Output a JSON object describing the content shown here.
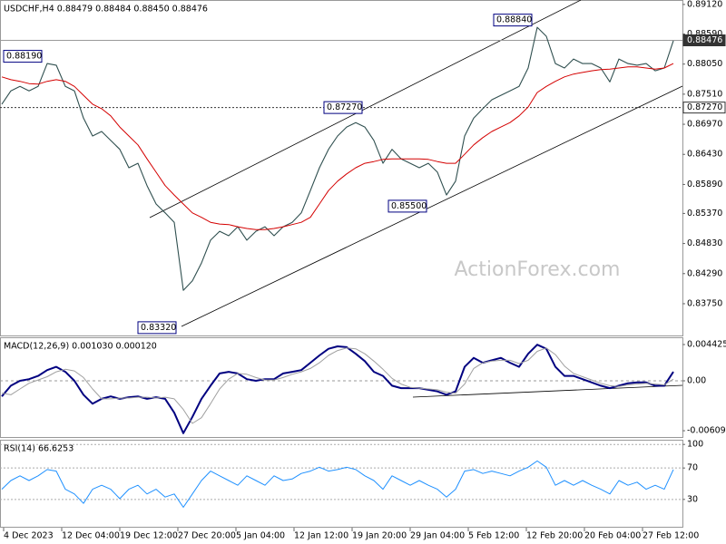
{
  "header": "USDCHF,H4  0.88479 0.88484 0.88450 0.88476",
  "watermark": "ActionForex.com",
  "chart_data": [
    {
      "type": "line",
      "title": "USDCHF,H4  0.88479 0.88484 0.88450 0.88476",
      "ylim": [
        0.8318,
        0.892
      ],
      "yticks": [
        {
          "value": 0.8912,
          "label": "0.89120"
        },
        {
          "value": 0.8859,
          "label": "0.88590"
        },
        {
          "value": 0.8805,
          "label": "0.88050"
        },
        {
          "value": 0.8751,
          "label": "0.87510"
        },
        {
          "value": 0.8697,
          "label": "0.86970"
        },
        {
          "value": 0.8643,
          "label": "0.86430"
        },
        {
          "value": 0.8589,
          "label": "0.85890"
        },
        {
          "value": 0.8537,
          "label": "0.85370"
        },
        {
          "value": 0.8483,
          "label": "0.84830"
        },
        {
          "value": 0.8429,
          "label": "0.84290"
        },
        {
          "value": 0.8375,
          "label": "0.83750"
        }
      ],
      "price_lines": [
        {
          "value": 0.88476,
          "label": "0.88476",
          "style": "solid"
        },
        {
          "value": 0.8727,
          "label": "0.87270",
          "style": "dotted"
        }
      ],
      "annotations": [
        {
          "value": 0.8819,
          "label": "0.88190"
        },
        {
          "value": 0.8727,
          "label": "0.87270"
        },
        {
          "value": 0.8884,
          "label": "0.88840"
        },
        {
          "value": 0.855,
          "label": "0.85500"
        },
        {
          "value": 0.8332,
          "label": "0.83320"
        }
      ],
      "series": [
        {
          "color": "#2f4f4f",
          "values": [
            0.8733,
            0.8757,
            0.8765,
            0.8757,
            0.8765,
            0.8806,
            0.8803,
            0.8765,
            0.8757,
            0.8708,
            0.8676,
            0.8684,
            0.8668,
            0.8652,
            0.8619,
            0.8627,
            0.8587,
            0.8554,
            0.8538,
            0.8521,
            0.8399,
            0.8416,
            0.8448,
            0.8489,
            0.8505,
            0.8497,
            0.8513,
            0.8489,
            0.8505,
            0.8513,
            0.8497,
            0.8513,
            0.8521,
            0.8538,
            0.8578,
            0.8619,
            0.8652,
            0.8676,
            0.8692,
            0.87,
            0.8692,
            0.8668,
            0.8627,
            0.8652,
            0.8635,
            0.8627,
            0.8619,
            0.8627,
            0.8611,
            0.857,
            0.8595,
            0.8676,
            0.8708,
            0.8725,
            0.8741,
            0.8749,
            0.8757,
            0.8765,
            0.8798,
            0.8871,
            0.8855,
            0.8806,
            0.8798,
            0.8814,
            0.8806,
            0.8806,
            0.8798,
            0.8773,
            0.8814,
            0.8806,
            0.8803,
            0.8806,
            0.8793,
            0.8798,
            0.8847
          ]
        },
        {
          "color": "#d40000",
          "values": [
            0.8782,
            0.8777,
            0.8774,
            0.877,
            0.8769,
            0.8774,
            0.8777,
            0.8774,
            0.8765,
            0.8749,
            0.8733,
            0.8725,
            0.8712,
            0.8692,
            0.8676,
            0.866,
            0.8635,
            0.8611,
            0.8587,
            0.857,
            0.8554,
            0.8538,
            0.853,
            0.8521,
            0.8518,
            0.8517,
            0.8513,
            0.851,
            0.8508,
            0.8508,
            0.851,
            0.8513,
            0.8517,
            0.8521,
            0.853,
            0.8554,
            0.8578,
            0.8595,
            0.8608,
            0.8619,
            0.8627,
            0.863,
            0.8634,
            0.8635,
            0.8635,
            0.8635,
            0.8635,
            0.8634,
            0.863,
            0.8627,
            0.8627,
            0.8643,
            0.866,
            0.8673,
            0.8684,
            0.8692,
            0.87,
            0.8712,
            0.8728,
            0.8754,
            0.8765,
            0.8774,
            0.8782,
            0.8787,
            0.879,
            0.8793,
            0.8795,
            0.8796,
            0.8798,
            0.88,
            0.88,
            0.8798,
            0.8796,
            0.8798,
            0.8806
          ]
        }
      ]
    },
    {
      "type": "line",
      "title": "MACD(12,26,9) 0.001030 0.000120",
      "ylim": [
        -0.00686,
        0.00531
      ],
      "yticks": [
        0.004425,
        {
          "value": 0,
          "label": "0.00"
        },
        -0.006092
      ],
      "zero_line": true,
      "series": [
        {
          "color": "#000080",
          "values": [
            -0.0019,
            -0.0006,
            0,
            0.0002,
            0.0006,
            0.0013,
            0.0017,
            0.0011,
            0,
            -0.0017,
            -0.0028,
            -0.0022,
            -0.0019,
            -0.0022,
            -0.002,
            -0.0019,
            -0.0022,
            -0.002,
            -0.0022,
            -0.0039,
            -0.0064,
            -0.0044,
            -0.0022,
            -0.0006,
            0.0009,
            0.0011,
            0.0009,
            0.0002,
            0,
            0.0002,
            0.0002,
            0.0009,
            0.0011,
            0.0013,
            0.0022,
            0.0031,
            0.0039,
            0.0042,
            0.0041,
            0.0033,
            0.0024,
            0.0011,
            0.0006,
            -0.0006,
            -0.0009,
            -0.0009,
            -0.0009,
            -0.0011,
            -0.0013,
            -0.0017,
            -0.0013,
            0.0017,
            0.0028,
            0.0022,
            0.0025,
            0.0028,
            0.0022,
            0.0017,
            0.0033,
            0.0044,
            0.0039,
            0.0017,
            0.0006,
            0.0006,
            0.0002,
            -0.0002,
            -0.0006,
            -0.0009,
            -0.0006,
            -0.0003,
            -0.0002,
            -0.0002,
            -0.0006,
            -0.0006,
            0.0011
          ]
        },
        {
          "color": "#a0a0a0",
          "values": [
            -0.0015,
            -0.0017,
            -0.001,
            -0.0003,
            0.0001,
            0.0005,
            0.0011,
            0.0014,
            0.0012,
            0.0004,
            -0.001,
            -0.0022,
            -0.0022,
            -0.0021,
            -0.0021,
            -0.002,
            -0.002,
            -0.0021,
            -0.002,
            -0.0022,
            -0.0035,
            -0.0052,
            -0.0045,
            -0.0028,
            -0.001,
            0.0002,
            0.0009,
            0.0008,
            0.0004,
            0.0001,
            0.0001,
            0.0004,
            0.0008,
            0.0011,
            0.0015,
            0.0022,
            0.0031,
            0.0037,
            0.004,
            0.0039,
            0.0033,
            0.0024,
            0.0014,
            0.0003,
            -0.0004,
            -0.0008,
            -0.0009,
            -0.001,
            -0.0011,
            -0.0014,
            -0.0015,
            -0.0004,
            0.0015,
            0.0022,
            0.0024,
            0.0025,
            0.0025,
            0.0021,
            0.0025,
            0.0036,
            0.004,
            0.0032,
            0.0018,
            0.0009,
            0.0005,
            0.0001,
            -0.0003,
            -0.0006,
            -0.0007,
            -0.0005,
            -0.0004,
            -0.0003,
            -0.0004,
            -0.0005,
            0.0002
          ]
        }
      ]
    },
    {
      "type": "line",
      "title": "RSI(14) 66.6253",
      "ylim": [
        -6,
        106
      ],
      "yticks": [
        100,
        70,
        30
      ],
      "grid": true,
      "xtick_labels": [
        "4 Dec 2023",
        "12 Dec 04:00",
        "19 Dec 12:00",
        "27 Dec 20:00",
        "5 Jan 04:00",
        "12 Jan 12:00",
        "19 Jan 20:00",
        "29 Jan 04:00",
        "5 Feb 12:00",
        "12 Feb 20:00",
        "20 Feb 04:00",
        "27 Feb 12:00"
      ],
      "series": [
        {
          "color": "#1e90ff",
          "values": [
            43,
            54,
            60,
            54,
            60,
            68,
            66,
            43,
            37,
            25,
            43,
            48,
            43,
            31,
            43,
            48,
            37,
            43,
            33,
            37,
            20,
            37,
            54,
            66,
            60,
            54,
            48,
            60,
            54,
            48,
            60,
            54,
            56,
            63,
            66,
            71,
            66,
            68,
            71,
            68,
            60,
            54,
            43,
            60,
            54,
            48,
            54,
            48,
            43,
            33,
            43,
            66,
            68,
            63,
            66,
            63,
            60,
            66,
            71,
            79,
            71,
            48,
            54,
            48,
            54,
            48,
            43,
            37,
            54,
            48,
            52,
            43,
            48,
            43,
            68
          ]
        }
      ]
    }
  ]
}
